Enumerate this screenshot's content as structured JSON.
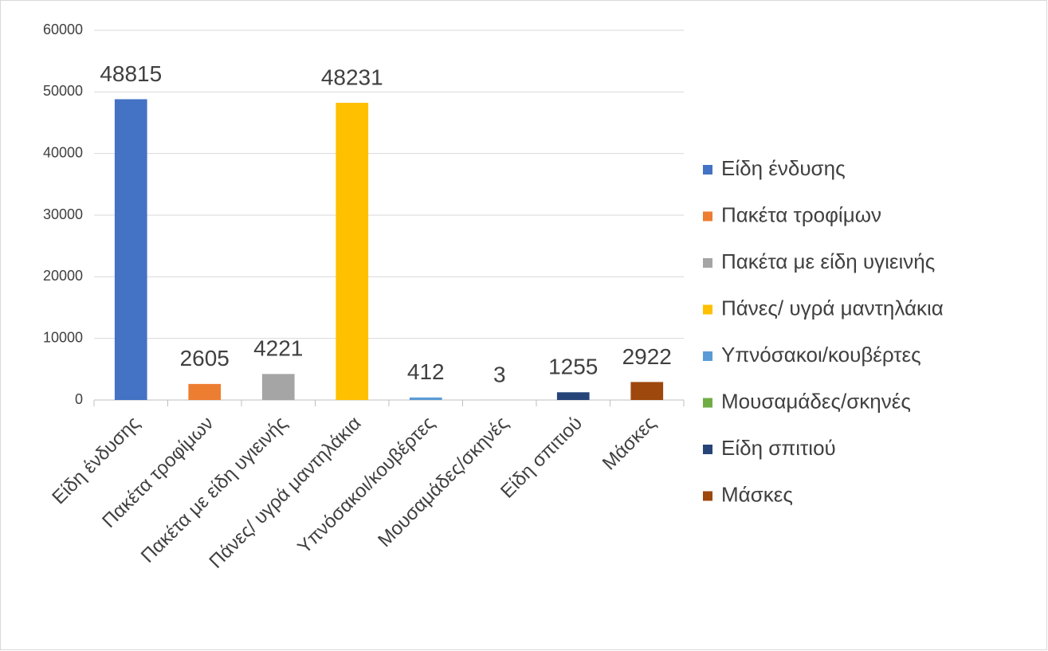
{
  "chart_data": {
    "type": "bar",
    "categories": [
      "Είδη ένδυσης",
      "Πακέτα τροφίμων",
      "Πακέτα με είδη υγιεινής",
      "Πάνες/ υγρά μαντηλάκια",
      "Υπνόσακοι/κουβέρτες",
      "Μουσαμάδες/σκηνές",
      "Είδη σπιτιού",
      "Μάσκες"
    ],
    "values": [
      48815,
      2605,
      4221,
      48231,
      412,
      3,
      1255,
      2922
    ],
    "colors": [
      "#4472c4",
      "#ed7d31",
      "#a5a5a5",
      "#ffc000",
      "#5b9bd5",
      "#70ad47",
      "#264478",
      "#9e480e"
    ],
    "ylim": [
      0,
      60000
    ],
    "yticks": [
      0,
      10000,
      20000,
      30000,
      40000,
      50000,
      60000
    ],
    "grid": true,
    "legend": "right"
  }
}
